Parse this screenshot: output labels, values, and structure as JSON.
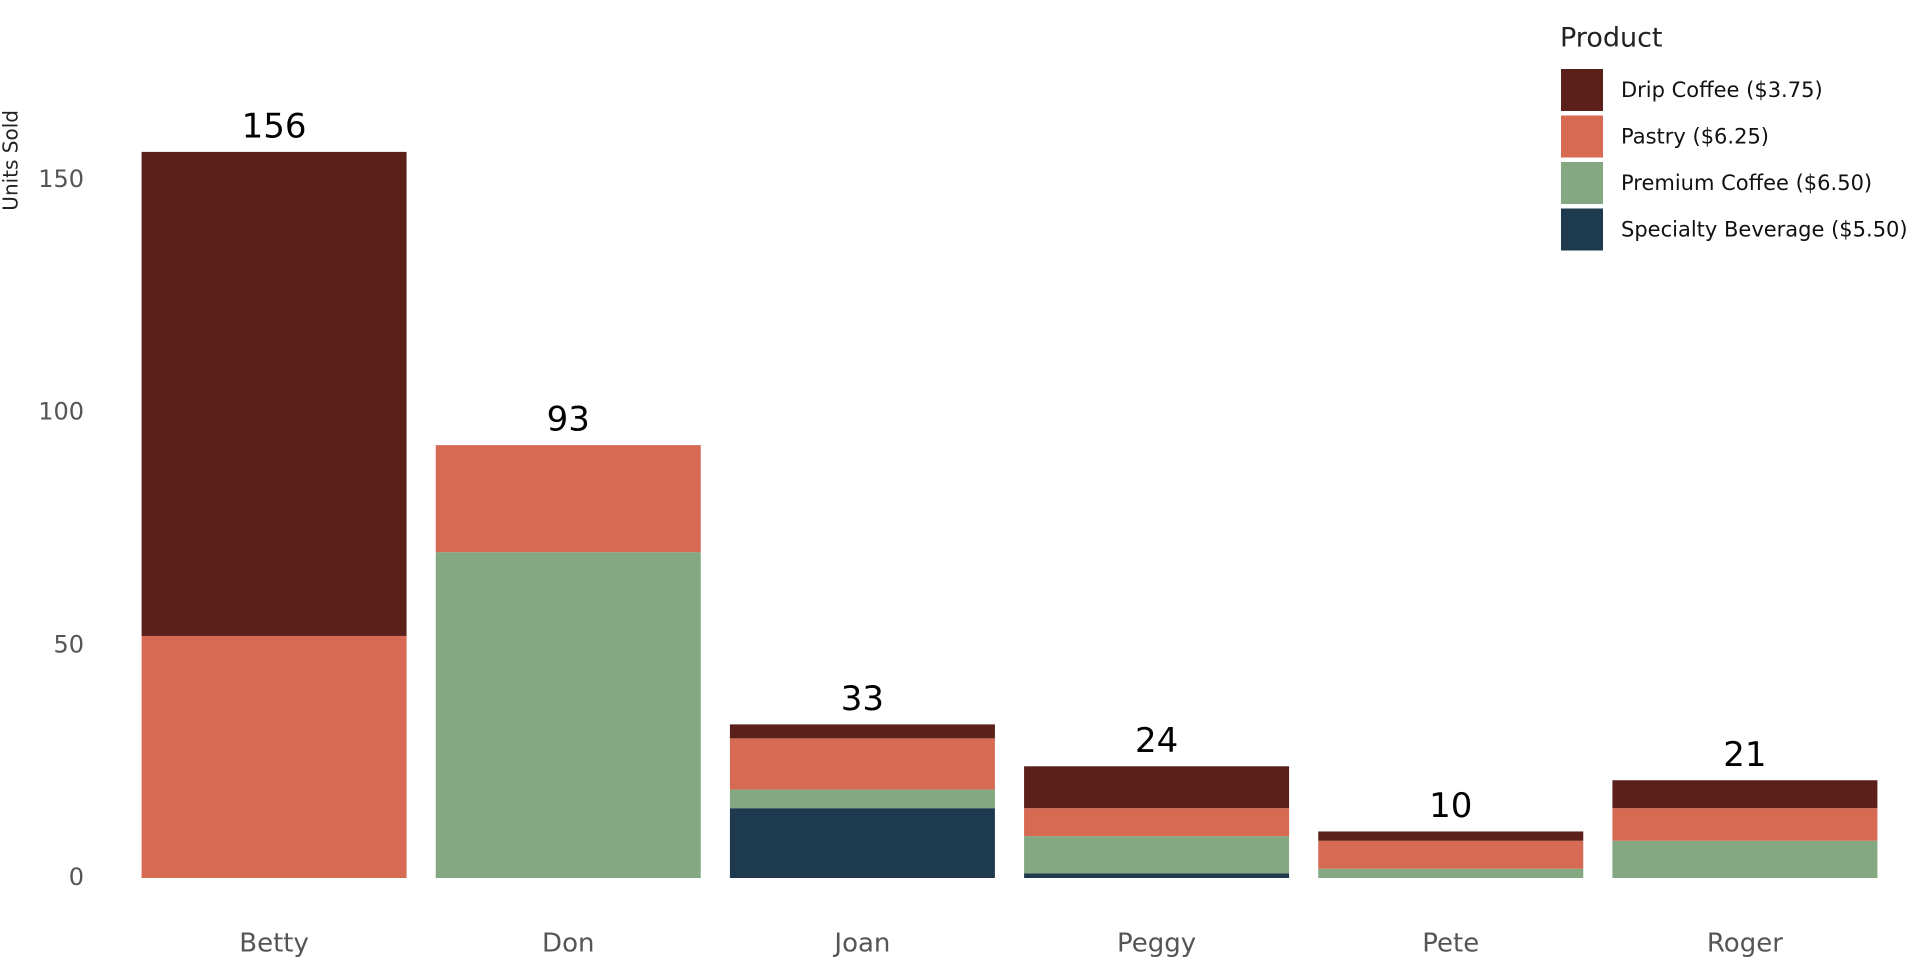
{
  "chart_data": {
    "type": "stacked_bar",
    "y_label": "Units Sold",
    "legend_title": "Product",
    "legend_position": "top-right",
    "categories": [
      "Betty",
      "Don",
      "Joan",
      "Peggy",
      "Pete",
      "Roger"
    ],
    "series": [
      {
        "name": "Specialty Beverage ($5.50)",
        "color": "#1d3a4e",
        "values": [
          0,
          0,
          15,
          1,
          0,
          0
        ]
      },
      {
        "name": "Premium Coffee ($6.50)",
        "color": "#84a882",
        "values": [
          0,
          70,
          4,
          8,
          2,
          8
        ]
      },
      {
        "name": "Pastry ($6.25)",
        "color": "#d66a53",
        "values": [
          52,
          23,
          11,
          6,
          6,
          7
        ]
      },
      {
        "name": "Drip Coffee ($3.75)",
        "color": "#5a2019",
        "values": [
          104,
          0,
          3,
          9,
          2,
          6
        ]
      }
    ],
    "totals": [
      156,
      93,
      33,
      24,
      10,
      21
    ],
    "ylim": [
      0,
      165
    ],
    "yticks": [
      0,
      50,
      100,
      150
    ],
    "grid": false
  }
}
